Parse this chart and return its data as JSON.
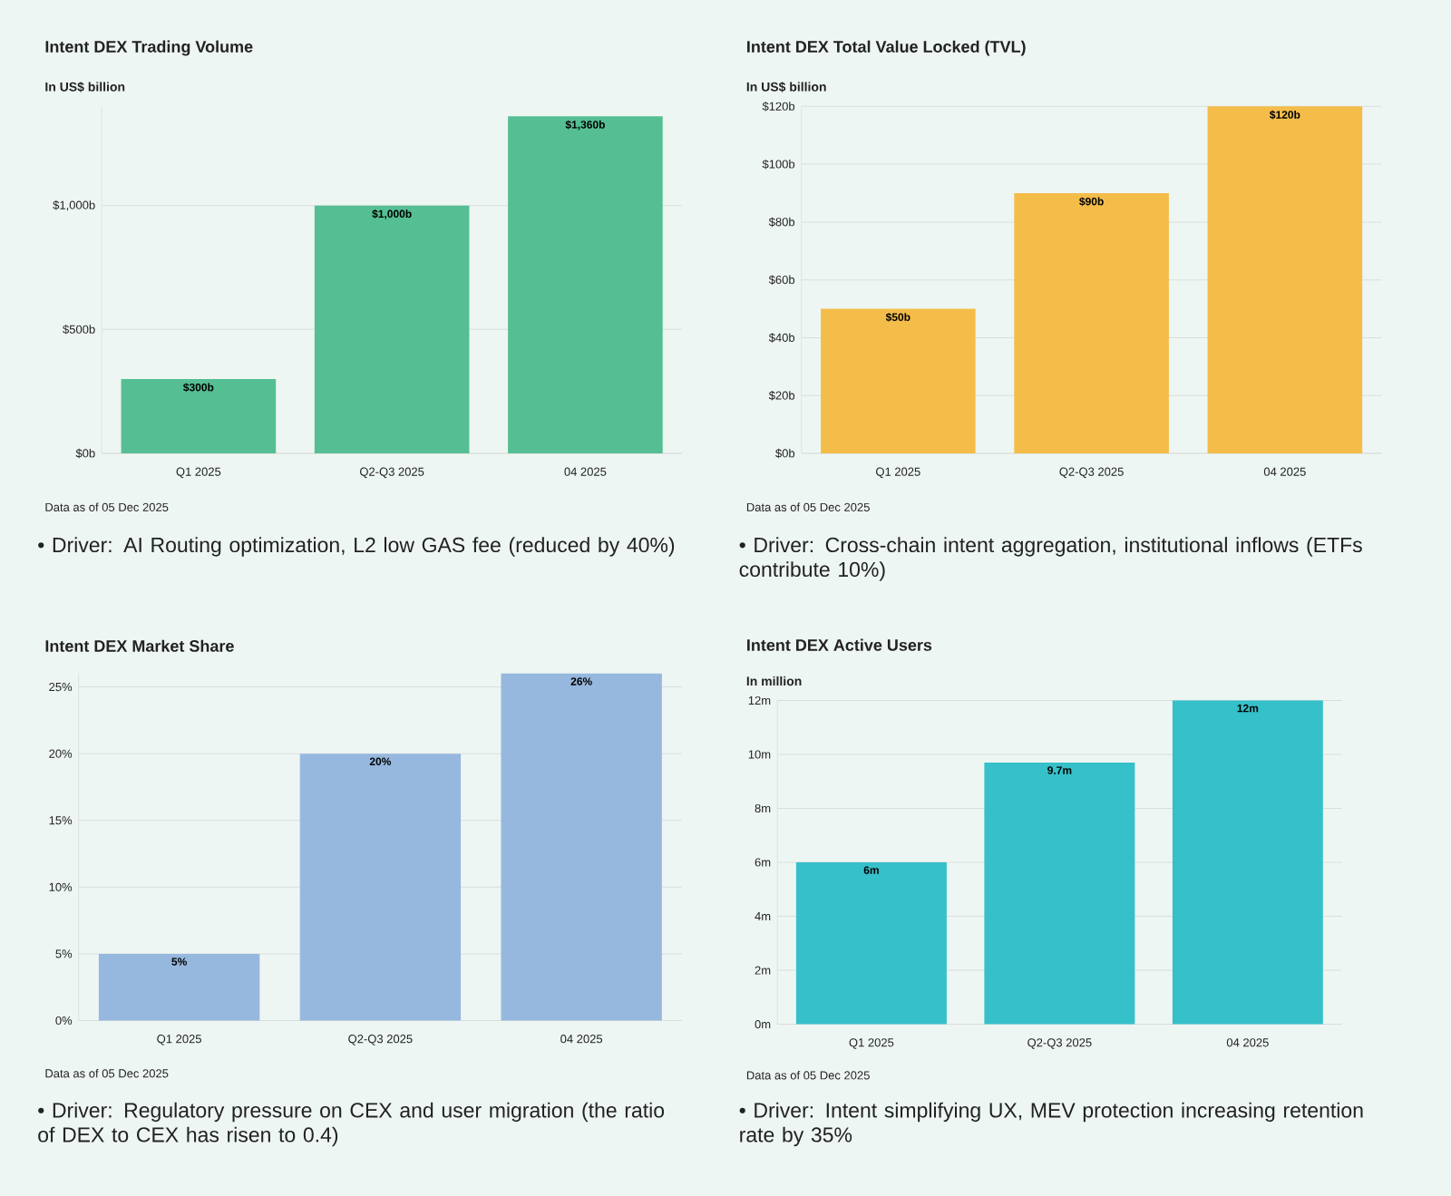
{
  "chart_data": [
    {
      "type": "bar",
      "title": "Intent DEX Trading Volume",
      "ylabel": "In US$ billion",
      "categories": [
        "Q1 2025",
        "Q2-Q3 2025",
        "04 2025"
      ],
      "values": [
        300,
        1000,
        1360
      ],
      "value_labels": [
        "$300b",
        "$1,000b",
        "$1,360b"
      ],
      "color": "#55bf93",
      "ylim": [
        0,
        1400
      ],
      "yticks": [
        {
          "value": 0,
          "label": "$0b"
        },
        {
          "value": 500,
          "label": "$500b"
        },
        {
          "value": 1000,
          "label": "$1,000b"
        }
      ],
      "grid": "y",
      "annotations": [
        "Data as of 05 Dec 2025",
        "• Driver: AI Routing optimization, L2 low GAS fee (reduced by 40%)"
      ]
    },
    {
      "type": "bar",
      "title": "Intent DEX Total Value Locked (TVL)",
      "ylabel": "In US$ billion",
      "categories": [
        "Q1 2025",
        "Q2-Q3 2025",
        "04 2025"
      ],
      "values": [
        50,
        90,
        120
      ],
      "value_labels": [
        "$50b",
        "$90b",
        "$120b"
      ],
      "color": "#f4bd4a",
      "ylim": [
        0,
        120
      ],
      "yticks": [
        {
          "value": 0,
          "label": "$0b"
        },
        {
          "value": 20,
          "label": "$20b"
        },
        {
          "value": 40,
          "label": "$40b"
        },
        {
          "value": 60,
          "label": "$60b"
        },
        {
          "value": 80,
          "label": "$80b"
        },
        {
          "value": 100,
          "label": "$100b"
        },
        {
          "value": 120,
          "label": "$120b"
        }
      ],
      "grid": "y",
      "annotations": [
        "Data as of 05 Dec 2025",
        "• Driver: Cross-chain intent aggregation, institutional inflows (ETFs contribute 10%)"
      ]
    },
    {
      "type": "bar",
      "title": "Intent DEX Market Share",
      "categories": [
        "Q1 2025",
        "Q2-Q3 2025",
        "04 2025"
      ],
      "values": [
        5,
        20,
        26
      ],
      "value_labels": [
        "5%",
        "20%",
        "26%"
      ],
      "color": "#97b8de",
      "ylim": [
        0,
        26
      ],
      "yticks": [
        {
          "value": 0,
          "label": "0%"
        },
        {
          "value": 5,
          "label": "5%"
        },
        {
          "value": 10,
          "label": "10%"
        },
        {
          "value": 15,
          "label": "15%"
        },
        {
          "value": 20,
          "label": "20%"
        },
        {
          "value": 25,
          "label": "25%"
        }
      ],
      "grid": "y",
      "annotations": [
        "Data as of 05 Dec 2025",
        "• Driver: Regulatory pressure on CEX and user migration (the ratio of DEX to CEX has risen to 0.4)"
      ]
    },
    {
      "type": "bar",
      "title": "Intent DEX Active Users",
      "ylabel": "In million",
      "categories": [
        "Q1 2025",
        "Q2-Q3 2025",
        "04 2025"
      ],
      "values": [
        6,
        9.7,
        12
      ],
      "value_labels": [
        "6m",
        "9.7m",
        "12m"
      ],
      "color": "#36c0c9",
      "ylim": [
        0,
        12
      ],
      "yticks": [
        {
          "value": 0,
          "label": "0m"
        },
        {
          "value": 2,
          "label": "2m"
        },
        {
          "value": 4,
          "label": "4m"
        },
        {
          "value": 6,
          "label": "6m"
        },
        {
          "value": 8,
          "label": "8m"
        },
        {
          "value": 10,
          "label": "10m"
        },
        {
          "value": 12,
          "label": "12m"
        }
      ],
      "grid": "y",
      "annotations": [
        "Data as of 05 Dec 2025",
        "• Driver: Intent simplifying UX, MEV protection increasing retention rate by 35%"
      ]
    }
  ]
}
